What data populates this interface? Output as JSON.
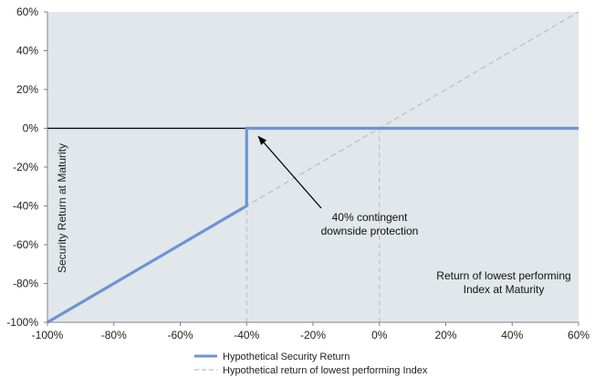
{
  "chart_data": {
    "type": "line",
    "xlim": [
      -100,
      60
    ],
    "ylim": [
      -100,
      60
    ],
    "x_ticks": [
      -100,
      -80,
      -60,
      -40,
      -20,
      0,
      20,
      40,
      60
    ],
    "y_ticks": [
      -100,
      -80,
      -60,
      -40,
      -20,
      0,
      20,
      40,
      60
    ],
    "x_tick_labels": [
      "-100%",
      "-80%",
      "-60%",
      "-40%",
      "-20%",
      "0%",
      "20%",
      "40%",
      "60%"
    ],
    "y_tick_labels": [
      "-100%",
      "-80%",
      "-60%",
      "-40%",
      "-20%",
      "0%",
      "20%",
      "40%",
      "60%"
    ],
    "ylabel": "Security Return at Maturity",
    "xlabel_lines": [
      "Return of lowest performing",
      "Index at Maturity"
    ],
    "series": [
      {
        "name": "Hypothetical Security Return",
        "color": "#6e93d4",
        "style": "solid",
        "points": [
          [
            -100,
            -100
          ],
          [
            -40,
            -40
          ],
          [
            -40,
            0
          ],
          [
            60,
            0
          ]
        ]
      },
      {
        "name": "Hypothetical return of lowest performing Index",
        "color": "#bdbdbd",
        "style": "dashed",
        "points": [
          [
            -100,
            -100
          ],
          [
            60,
            60
          ]
        ]
      }
    ],
    "reference_lines": [
      {
        "axis": "x",
        "value": -40,
        "style": "dashed"
      },
      {
        "axis": "x",
        "value": 0,
        "style": "dashed"
      }
    ],
    "annotation": {
      "lines": [
        "40% contingent",
        "downside protection"
      ],
      "arrow_to": [
        -40,
        0
      ]
    },
    "grid": false,
    "legend": "bottom-center",
    "colors": {
      "plot_background": "#e1e7ea",
      "axis": "#808080",
      "zero_line": "#000000"
    }
  }
}
